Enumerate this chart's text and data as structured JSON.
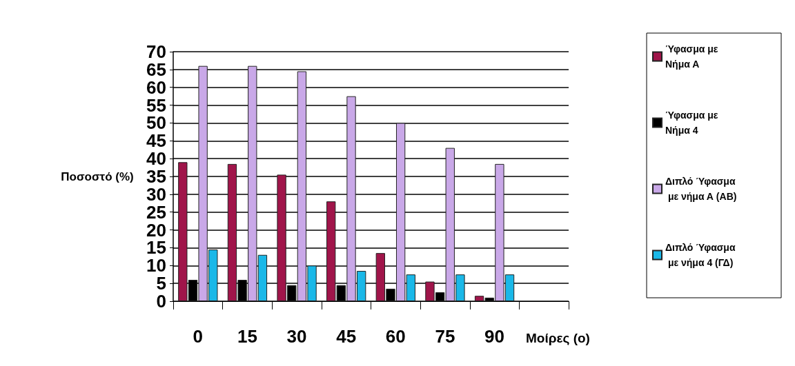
{
  "chart_data": {
    "type": "bar",
    "categories": [
      "0",
      "15",
      "30",
      "45",
      "60",
      "75",
      "90",
      null
    ],
    "series": [
      {
        "name": "Ύφασμα με Νήμα Α",
        "color": "#a0154a",
        "values": [
          39,
          38.5,
          35.5,
          28,
          13.5,
          5.5,
          1.5,
          null
        ]
      },
      {
        "name": "Ύφασμα με Νήμα 4",
        "color": "#000000",
        "values": [
          6,
          6,
          4.5,
          4.5,
          3.5,
          2.5,
          1,
          null
        ]
      },
      {
        "name": "Διπλό Ύφασμα με νήμα Α (ΑΒ)",
        "color": "#c9a8e8",
        "values": [
          66,
          66,
          64.5,
          57.5,
          50,
          43,
          38.5,
          null
        ]
      },
      {
        "name": "Διπλό Ύφασμα με νήμα 4 (ΓΔ)",
        "color": "#1ab8e8",
        "values": [
          14.5,
          13,
          10,
          8.5,
          7.5,
          7.5,
          7.5,
          null
        ]
      }
    ],
    "xlabel": "Μοίρες (o)",
    "ylabel": "Ποσοστό (%)",
    "ylim": [
      0,
      70
    ],
    "yticks": [
      0,
      5,
      10,
      15,
      20,
      25,
      30,
      35,
      40,
      45,
      50,
      55,
      60,
      65,
      70
    ],
    "grid": "y",
    "legend": "right"
  }
}
